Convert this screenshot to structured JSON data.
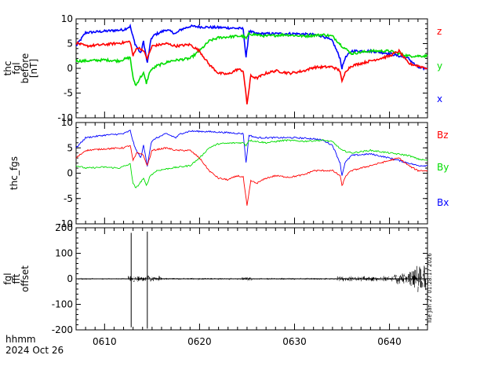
{
  "footer": {
    "time_format_label": "hhmm",
    "date_label": "2024 Oct 26",
    "timestamp_label": "Tue Jan 27 01:28:17 2026"
  },
  "time_ticks": [
    {
      "minute": 10,
      "label": "0610"
    },
    {
      "minute": 20,
      "label": "0620"
    },
    {
      "minute": 30,
      "label": "0630"
    },
    {
      "minute": 40,
      "label": "0640"
    }
  ],
  "colors": {
    "red": "#ff0000",
    "green": "#00dd00",
    "blue": "#0000ff",
    "black": "#000000"
  },
  "chart_data": [
    {
      "type": "line",
      "ylabel_lines": [
        "thc",
        "fgl",
        "before",
        "[nT]"
      ],
      "ylim": [
        -10,
        10
      ],
      "yticks": [
        -10,
        -5,
        0,
        5,
        10
      ],
      "xlim_minutes": [
        7,
        44
      ],
      "line_width": 1.6,
      "noise_scale": 0.25,
      "series": [
        {
          "name": "x",
          "color": "#0000ff",
          "points": [
            [
              7,
              4.5
            ],
            [
              8,
              7.2
            ],
            [
              10,
              7.5
            ],
            [
              12,
              7.8
            ],
            [
              12.7,
              8.5
            ],
            [
              12.9,
              7.0
            ],
            [
              13.2,
              5.0
            ],
            [
              13.8,
              3.0
            ],
            [
              14.1,
              5.5
            ],
            [
              14.5,
              1.0
            ],
            [
              14.9,
              6.0
            ],
            [
              15.3,
              6.8
            ],
            [
              16.5,
              7.8
            ],
            [
              17.5,
              7.0
            ],
            [
              18.0,
              7.8
            ],
            [
              19,
              8.5
            ],
            [
              21,
              8.3
            ],
            [
              23,
              8.2
            ],
            [
              24.6,
              8.0
            ],
            [
              24.9,
              2.0
            ],
            [
              25.2,
              7.5
            ],
            [
              26,
              7.0
            ],
            [
              28,
              7.0
            ],
            [
              30,
              7.0
            ],
            [
              32,
              6.8
            ],
            [
              33,
              6.5
            ],
            [
              34,
              5.5
            ],
            [
              34.8,
              2.0
            ],
            [
              35.0,
              0.0
            ],
            [
              35.3,
              2.0
            ],
            [
              36,
              3.5
            ],
            [
              38,
              3.5
            ],
            [
              40,
              3.0
            ],
            [
              42,
              2.0
            ],
            [
              42.8,
              0.5
            ],
            [
              43.2,
              0.0
            ],
            [
              44,
              0.0
            ]
          ]
        },
        {
          "name": "y",
          "color": "#00dd00",
          "points": [
            [
              7,
              1.5
            ],
            [
              8,
              1.5
            ],
            [
              10,
              1.7
            ],
            [
              11.5,
              1.5
            ],
            [
              12.7,
              2.2
            ],
            [
              13.0,
              -2.0
            ],
            [
              13.3,
              -3.5
            ],
            [
              13.7,
              -2.0
            ],
            [
              14.1,
              -1.0
            ],
            [
              14.4,
              -3.0
            ],
            [
              14.8,
              -0.5
            ],
            [
              15.5,
              0.5
            ],
            [
              17,
              1.5
            ],
            [
              19,
              2.0
            ],
            [
              20,
              3.5
            ],
            [
              21,
              5.5
            ],
            [
              22,
              6.2
            ],
            [
              24,
              6.5
            ],
            [
              24.6,
              6.5
            ],
            [
              24.9,
              6.0
            ],
            [
              25.2,
              7.0
            ],
            [
              27,
              6.5
            ],
            [
              29,
              6.8
            ],
            [
              31,
              6.5
            ],
            [
              33,
              6.8
            ],
            [
              34,
              6.5
            ],
            [
              35,
              4.5
            ],
            [
              36,
              3.0
            ],
            [
              38,
              3.5
            ],
            [
              40,
              3.5
            ],
            [
              42,
              2.5
            ],
            [
              43,
              2.5
            ],
            [
              44,
              2.5
            ]
          ]
        },
        {
          "name": "z",
          "color": "#ff0000",
          "points": [
            [
              7,
              5.2
            ],
            [
              8,
              4.5
            ],
            [
              10,
              4.8
            ],
            [
              12,
              5.2
            ],
            [
              12.7,
              5.4
            ],
            [
              13.0,
              2.5
            ],
            [
              13.4,
              4.2
            ],
            [
              14,
              3.8
            ],
            [
              14.5,
              2.0
            ],
            [
              15,
              4.5
            ],
            [
              16.5,
              5.0
            ],
            [
              17.5,
              4.5
            ],
            [
              19,
              4.8
            ],
            [
              20,
              3.5
            ],
            [
              21,
              0.8
            ],
            [
              22,
              -1.0
            ],
            [
              23,
              -1.2
            ],
            [
              24,
              -0.2
            ],
            [
              24.6,
              -0.5
            ],
            [
              25.0,
              -7.2
            ],
            [
              25.4,
              -1.5
            ],
            [
              26,
              -2.0
            ],
            [
              27,
              -1.0
            ],
            [
              28,
              -0.5
            ],
            [
              29.5,
              -1.0
            ],
            [
              31,
              -0.5
            ],
            [
              32,
              0.2
            ],
            [
              34,
              0.3
            ],
            [
              34.8,
              -0.5
            ],
            [
              35.0,
              -2.8
            ],
            [
              35.4,
              -0.5
            ],
            [
              36,
              0.5
            ],
            [
              38,
              1.5
            ],
            [
              40,
              2.5
            ],
            [
              41,
              3.5
            ],
            [
              42,
              1.0
            ],
            [
              43,
              0.5
            ],
            [
              44,
              0.0
            ]
          ]
        }
      ]
    },
    {
      "type": "line",
      "ylabel_lines": [
        "thc_fgs"
      ],
      "ylim": [
        -10,
        10
      ],
      "yticks": [
        -10,
        -5,
        0,
        5,
        10
      ],
      "xlim_minutes": [
        7,
        44
      ],
      "line_width": 0.9,
      "noise_scale": 0.15,
      "series": [
        {
          "name": "Bx",
          "color": "#0000ff",
          "points": [
            [
              7,
              5.0
            ],
            [
              8,
              7.0
            ],
            [
              10,
              7.5
            ],
            [
              12,
              7.8
            ],
            [
              12.7,
              8.4
            ],
            [
              12.9,
              7.0
            ],
            [
              13.2,
              5.0
            ],
            [
              13.8,
              3.0
            ],
            [
              14.1,
              5.5
            ],
            [
              14.5,
              1.5
            ],
            [
              14.9,
              6.0
            ],
            [
              15.3,
              6.8
            ],
            [
              16.5,
              7.8
            ],
            [
              17.5,
              7.0
            ],
            [
              18.0,
              7.8
            ],
            [
              19,
              8.3
            ],
            [
              21,
              8.2
            ],
            [
              23,
              8.0
            ],
            [
              24.6,
              7.8
            ],
            [
              24.9,
              2.0
            ],
            [
              25.2,
              7.5
            ],
            [
              26,
              7.0
            ],
            [
              28,
              7.0
            ],
            [
              30,
              7.0
            ],
            [
              32,
              6.8
            ],
            [
              33,
              6.5
            ],
            [
              34,
              5.5
            ],
            [
              34.8,
              2.0
            ],
            [
              35.0,
              -0.5
            ],
            [
              35.3,
              2.0
            ],
            [
              36,
              3.5
            ],
            [
              38,
              3.8
            ],
            [
              40,
              3.0
            ],
            [
              42,
              2.0
            ],
            [
              43,
              1.5
            ],
            [
              44,
              1.5
            ]
          ]
        },
        {
          "name": "By",
          "color": "#00dd00",
          "points": [
            [
              7,
              1.5
            ],
            [
              8,
              1.0
            ],
            [
              10,
              1.2
            ],
            [
              11.5,
              1.0
            ],
            [
              12.7,
              1.8
            ],
            [
              13.0,
              -2.0
            ],
            [
              13.3,
              -3.0
            ],
            [
              13.7,
              -2.0
            ],
            [
              14.1,
              -1.0
            ],
            [
              14.4,
              -2.5
            ],
            [
              14.8,
              -0.5
            ],
            [
              15.5,
              0.5
            ],
            [
              17,
              1.0
            ],
            [
              19,
              1.5
            ],
            [
              20,
              3.0
            ],
            [
              21,
              5.0
            ],
            [
              22,
              5.8
            ],
            [
              24,
              6.0
            ],
            [
              24.6,
              6.0
            ],
            [
              24.9,
              5.5
            ],
            [
              25.2,
              6.5
            ],
            [
              27,
              6.0
            ],
            [
              29,
              6.5
            ],
            [
              31,
              6.3
            ],
            [
              33,
              6.5
            ],
            [
              34,
              6.2
            ],
            [
              35,
              4.5
            ],
            [
              36,
              4.0
            ],
            [
              38,
              4.5
            ],
            [
              40,
              4.0
            ],
            [
              42,
              3.5
            ],
            [
              43,
              2.8
            ],
            [
              44,
              2.5
            ]
          ]
        },
        {
          "name": "Bz",
          "color": "#ff0000",
          "points": [
            [
              7,
              3.0
            ],
            [
              8,
              4.5
            ],
            [
              10,
              4.8
            ],
            [
              12,
              5.0
            ],
            [
              12.7,
              5.5
            ],
            [
              13.0,
              2.5
            ],
            [
              13.4,
              4.0
            ],
            [
              14,
              3.8
            ],
            [
              14.5,
              1.5
            ],
            [
              15,
              4.5
            ],
            [
              16.5,
              5.0
            ],
            [
              17.5,
              4.5
            ],
            [
              19,
              4.5
            ],
            [
              20,
              3.0
            ],
            [
              21,
              0.5
            ],
            [
              22,
              -1.0
            ],
            [
              23,
              -1.3
            ],
            [
              24,
              -0.5
            ],
            [
              24.6,
              -0.8
            ],
            [
              25.0,
              -6.5
            ],
            [
              25.4,
              -1.5
            ],
            [
              26,
              -2.0
            ],
            [
              27,
              -1.0
            ],
            [
              28,
              -0.5
            ],
            [
              29.5,
              -0.8
            ],
            [
              31,
              -0.3
            ],
            [
              32,
              0.5
            ],
            [
              34,
              0.5
            ],
            [
              34.8,
              -0.5
            ],
            [
              35.0,
              -2.5
            ],
            [
              35.4,
              -0.5
            ],
            [
              36,
              0.5
            ],
            [
              38,
              1.5
            ],
            [
              40,
              2.5
            ],
            [
              41,
              3.0
            ],
            [
              42,
              1.5
            ],
            [
              43,
              0.5
            ],
            [
              44,
              0.5
            ]
          ]
        }
      ]
    },
    {
      "type": "line",
      "ylabel_lines": [
        "fgl",
        "fft",
        "offset"
      ],
      "ylim": [
        -200,
        200
      ],
      "yticks": [
        -200,
        -100,
        0,
        100,
        200
      ],
      "xlim_minutes": [
        7,
        44
      ],
      "series": [
        {
          "name": "",
          "color": "#000000",
          "spikes": [
            [
              12.8,
              -190,
              180
            ],
            [
              14.5,
              -195,
              185
            ]
          ],
          "noise_regions": [
            {
              "x_start": 7.0,
              "x_end": 12.5,
              "amplitude": 3
            },
            {
              "x_start": 12.5,
              "x_end": 16.0,
              "amplitude": 14
            },
            {
              "x_start": 16.0,
              "x_end": 24.5,
              "amplitude": 4
            },
            {
              "x_start": 24.5,
              "x_end": 25.5,
              "amplitude": 10
            },
            {
              "x_start": 25.5,
              "x_end": 34.5,
              "amplitude": 4
            },
            {
              "x_start": 34.5,
              "x_end": 36.0,
              "amplitude": 12
            },
            {
              "x_start": 36.0,
              "x_end": 40.5,
              "amplitude": 12
            },
            {
              "x_start": 40.5,
              "x_end": 42.0,
              "amplitude": 25
            },
            {
              "x_start": 42.0,
              "x_end": 43.8,
              "amplitude": 60
            }
          ]
        }
      ]
    }
  ]
}
